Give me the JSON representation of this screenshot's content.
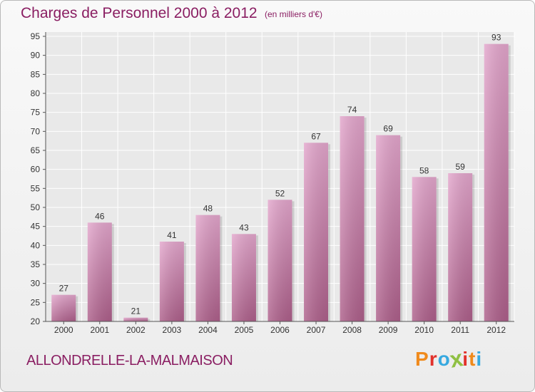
{
  "header": {
    "title": "Charges de Personnel 2000 à 2012",
    "unit": "(en milliers d'€)"
  },
  "footer": {
    "commune": "ALLONDRELLE-LA-MALMAISON",
    "logo_letters": [
      "P",
      "r",
      "o",
      "x",
      "i",
      "t",
      "i"
    ],
    "logo_colors": [
      "#f08a1c",
      "#e2312b",
      "#37a9e0",
      "#8fc043",
      "#e2312b",
      "#f08a1c",
      "#37a9e0"
    ]
  },
  "chart_data": {
    "type": "bar",
    "title": "Charges de Personnel 2000 à 2012",
    "subtitle": "(en milliers d'€)",
    "categories": [
      "2000",
      "2001",
      "2002",
      "2003",
      "2004",
      "2005",
      "2006",
      "2007",
      "2008",
      "2009",
      "2010",
      "2011",
      "2012"
    ],
    "values": [
      27,
      46,
      21,
      41,
      48,
      43,
      52,
      67,
      74,
      69,
      58,
      59,
      93
    ],
    "ylim": [
      20,
      95
    ],
    "yticks": [
      "20",
      "25",
      "30",
      "35",
      "40",
      "45",
      "50",
      "55",
      "60",
      "65",
      "70",
      "75",
      "80",
      "85",
      "90",
      "95"
    ],
    "grid": true,
    "bar_color": "#d889bb",
    "bar_color_dark": "#a8577f",
    "axis_color": "#8a1e62"
  }
}
